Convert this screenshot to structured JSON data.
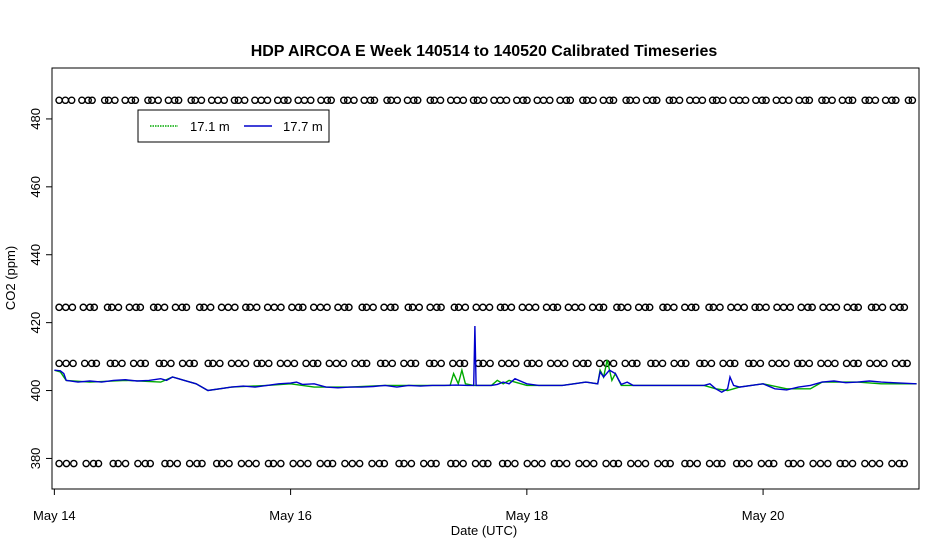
{
  "chart_data": {
    "type": "line",
    "title": "HDP AIRCOA E  Week 140514 to 140520  Calibrated Timeseries",
    "xlabel": "Date (UTC)",
    "ylabel": "CO2 (ppm)",
    "xlim": [
      -0.02,
      7.32
    ],
    "ylim": [
      371,
      495
    ],
    "x_ticks": [
      {
        "x": 0,
        "label": "May 14"
      },
      {
        "x": 2,
        "label": "May 16"
      },
      {
        "x": 4,
        "label": "May 18"
      },
      {
        "x": 6,
        "label": "May 20"
      }
    ],
    "y_ticks": [
      380,
      400,
      420,
      440,
      460,
      480
    ],
    "legend": {
      "position": "top-left",
      "entries": [
        {
          "label": "17.1 m",
          "color": "#00aa00"
        },
        {
          "label": "17.7 m",
          "color": "#0000cc"
        }
      ]
    },
    "grid": false,
    "series": [
      {
        "name": "17.1 m",
        "color": "#00aa00",
        "x": [
          0.0,
          0.05,
          0.1,
          0.3,
          0.6,
          0.9,
          1.0,
          1.2,
          1.3,
          1.5,
          1.8,
          2.0,
          2.2,
          2.3,
          2.5,
          2.8,
          3.0,
          3.2,
          3.35,
          3.38,
          3.42,
          3.45,
          3.48,
          3.55,
          3.7,
          3.75,
          3.8,
          3.85,
          4.0,
          4.3,
          4.5,
          4.6,
          4.62,
          4.65,
          4.68,
          4.72,
          4.75,
          4.8,
          5.0,
          5.3,
          5.5,
          5.6,
          5.7,
          5.75,
          5.8,
          6.0,
          6.2,
          6.4,
          6.5,
          6.8,
          7.0,
          7.3
        ],
        "y": [
          406,
          405.5,
          403,
          402.5,
          403,
          402.5,
          404,
          402,
          400,
          401,
          401.5,
          402,
          401,
          401,
          401,
          401.5,
          401.5,
          401.5,
          401.5,
          405,
          402,
          406,
          402,
          401.5,
          401.5,
          403,
          402,
          403,
          401.5,
          401.5,
          402.5,
          402,
          406,
          404,
          409,
          403,
          405,
          401.5,
          401.5,
          401.5,
          401.5,
          400.5,
          400,
          400.5,
          401,
          402,
          400.5,
          400.5,
          402.5,
          402.5,
          402,
          402
        ]
      },
      {
        "name": "17.7 m",
        "color": "#0000cc",
        "x": [
          0.0,
          0.05,
          0.08,
          0.1,
          0.2,
          0.3,
          0.4,
          0.5,
          0.6,
          0.7,
          0.8,
          0.9,
          0.95,
          1.0,
          1.05,
          1.1,
          1.2,
          1.3,
          1.4,
          1.5,
          1.6,
          1.7,
          1.8,
          1.9,
          2.0,
          2.05,
          2.1,
          2.2,
          2.3,
          2.4,
          2.5,
          2.6,
          2.7,
          2.8,
          2.9,
          3.0,
          3.1,
          3.2,
          3.3,
          3.4,
          3.5,
          3.55,
          3.56,
          3.57,
          3.58,
          3.6,
          3.7,
          3.75,
          3.8,
          3.85,
          3.9,
          4.0,
          4.1,
          4.2,
          4.3,
          4.4,
          4.5,
          4.6,
          4.62,
          4.65,
          4.7,
          4.75,
          4.78,
          4.8,
          4.85,
          4.9,
          5.0,
          5.2,
          5.4,
          5.5,
          5.55,
          5.6,
          5.65,
          5.7,
          5.72,
          5.75,
          5.8,
          5.9,
          6.0,
          6.1,
          6.2,
          6.3,
          6.4,
          6.5,
          6.6,
          6.7,
          6.8,
          6.9,
          7.0,
          7.1,
          7.3
        ],
        "y": [
          406,
          405.8,
          405,
          403,
          402.5,
          402.8,
          402.5,
          403,
          403.2,
          402.8,
          403,
          403.5,
          403,
          404,
          403.5,
          403,
          402,
          400,
          400.5,
          401,
          401.3,
          401,
          401.5,
          402,
          402.2,
          402.5,
          401.8,
          402,
          401,
          400.8,
          401,
          401,
          401.2,
          401.5,
          401,
          401.5,
          401.3,
          401.5,
          401.5,
          401.6,
          401.5,
          401.5,
          419,
          401.5,
          401.5,
          401.5,
          401.5,
          401.8,
          402.5,
          402,
          403.5,
          402,
          401.5,
          401.5,
          401.5,
          402,
          402.5,
          402,
          405.5,
          404,
          406,
          405,
          403,
          401.8,
          402.5,
          401.5,
          401.5,
          401.5,
          401.5,
          401.5,
          402,
          400.5,
          399.5,
          400.5,
          404,
          401.5,
          401,
          401.5,
          402,
          400.5,
          400.2,
          401,
          401.5,
          402.5,
          402.8,
          402.3,
          402.5,
          402.8,
          402.5,
          402.3,
          402
        ]
      }
    ],
    "marker_rows": [
      {
        "y": 485.5,
        "symbol": "o"
      },
      {
        "y": 424.5,
        "symbol": "o"
      },
      {
        "y": 408,
        "symbol": "o"
      },
      {
        "y": 378.5,
        "symbol": "o"
      }
    ]
  }
}
